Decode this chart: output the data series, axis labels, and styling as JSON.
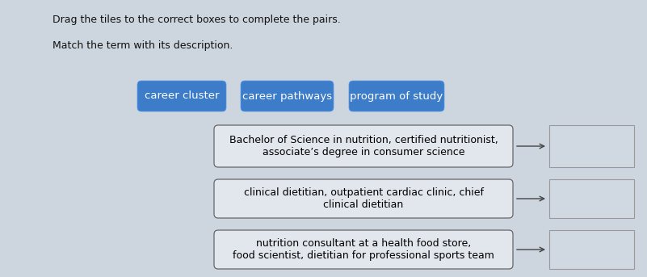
{
  "bg_color": "#cdd5de",
  "title_line1": "Drag the tiles to the correct boxes to complete the pairs.",
  "title_line2": "Match the term with its description.",
  "tiles": [
    {
      "label": "career cluster"
    },
    {
      "label": "career pathways"
    },
    {
      "label": "program of study"
    }
  ],
  "tile_color": "#3d7cc9",
  "tile_text_color": "#ffffff",
  "tile_fontsize": 9.5,
  "boxes": [
    {
      "label": "Bachelor of Science in nutrition, certified nutritionist,\nassociate’s degree in consumer science"
    },
    {
      "label": "clinical dietitian, outpatient cardiac clinic, chief\nclinical dietitian"
    },
    {
      "label": "nutrition consultant at a health food store,\nfood scientist, dietitian for professional sports team"
    }
  ],
  "box_facecolor": "#e2e6ed",
  "box_edgecolor": "#666666",
  "answer_box_facecolor": "#d0d8e2",
  "answer_box_edgecolor": "#999999",
  "arrow_color": "#444444",
  "text_fontsize": 9,
  "instr_fontsize": 9,
  "instr_color": "#111111"
}
